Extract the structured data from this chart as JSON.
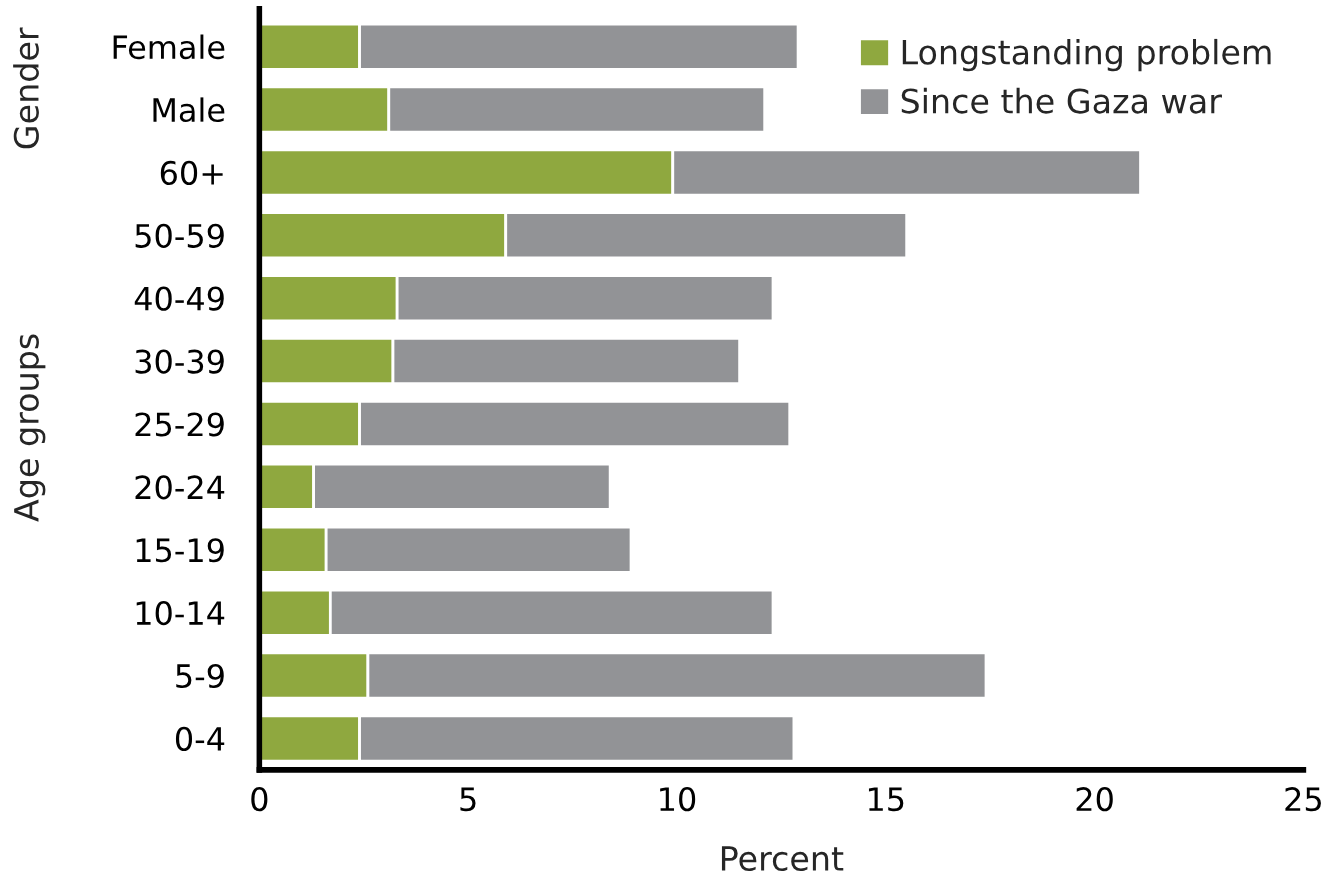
{
  "chart_data": {
    "type": "bar",
    "orientation": "horizontal",
    "stacked": true,
    "categories": [
      "Female",
      "Male",
      "60+",
      "50-59",
      "40-49",
      "30-39",
      "25-29",
      "20-24",
      "15-19",
      "10-14",
      "5-9",
      "0-4"
    ],
    "series": [
      {
        "name": "Longstanding problem",
        "color": "#8fa83f",
        "values": [
          2.4,
          3.1,
          9.9,
          5.9,
          3.3,
          3.2,
          2.4,
          1.3,
          1.6,
          1.7,
          2.6,
          2.4
        ]
      },
      {
        "name": "Since the Gaza war",
        "color": "#929396",
        "values": [
          10.5,
          9.0,
          11.2,
          9.6,
          9.0,
          8.3,
          10.3,
          7.1,
          7.3,
          10.6,
          14.8,
          10.4
        ]
      }
    ],
    "xlabel": "Percent",
    "xlim": [
      0,
      25
    ],
    "xticks": [
      0,
      5,
      10,
      15,
      20,
      25
    ],
    "annotations": [
      "Gender",
      "Age groups"
    ],
    "legend": "top right",
    "grid": false
  }
}
